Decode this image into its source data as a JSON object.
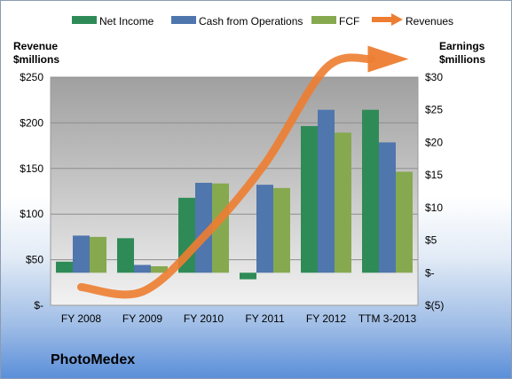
{
  "chart_data": {
    "type": "bar",
    "categories": [
      "FY 2008",
      "FY 2009",
      "FY 2010",
      "FY 2011",
      "FY 2012",
      "TTM 3-2013"
    ],
    "series": [
      {
        "name": "Net Income",
        "axis": "right",
        "values": [
          1.7,
          5.3,
          11.5,
          -1.0,
          22.5,
          25.0
        ]
      },
      {
        "name": "Cash from Operations",
        "axis": "right",
        "values": [
          5.7,
          1.2,
          13.8,
          13.5,
          25.0,
          20.0
        ]
      },
      {
        "name": "FCF",
        "axis": "right",
        "values": [
          5.5,
          1.0,
          13.7,
          13.0,
          21.5,
          15.5
        ]
      },
      {
        "name": "Revenues",
        "axis": "left",
        "type": "line",
        "values": [
          20,
          15,
          75,
          155,
          260,
          270
        ]
      }
    ],
    "left_axis": {
      "title_line1": "Revenue",
      "title_line2": "$millions",
      "ylim": [
        0,
        250
      ],
      "ticks": [
        0,
        50,
        100,
        150,
        200,
        250
      ],
      "tick_labels": [
        "$-",
        "$50",
        "$100",
        "$150",
        "$200",
        "$250"
      ]
    },
    "right_axis": {
      "title_line1": "Earnings",
      "title_line2": "$millions",
      "ylim": [
        -5,
        30
      ],
      "ticks": [
        -5,
        0,
        5,
        10,
        15,
        20,
        25,
        30
      ],
      "tick_labels": [
        "$(5)",
        "$-",
        "$5",
        "$10",
        "$15",
        "$20",
        "$25",
        "$30"
      ]
    },
    "legend_position": "top",
    "grid": true,
    "colors": {
      "Net Income": "#2e8b57",
      "Cash from Operations": "#4f76ad",
      "FCF": "#86a94f",
      "Revenues": "#ed7d31"
    }
  },
  "company_name": "PhotoMedex"
}
